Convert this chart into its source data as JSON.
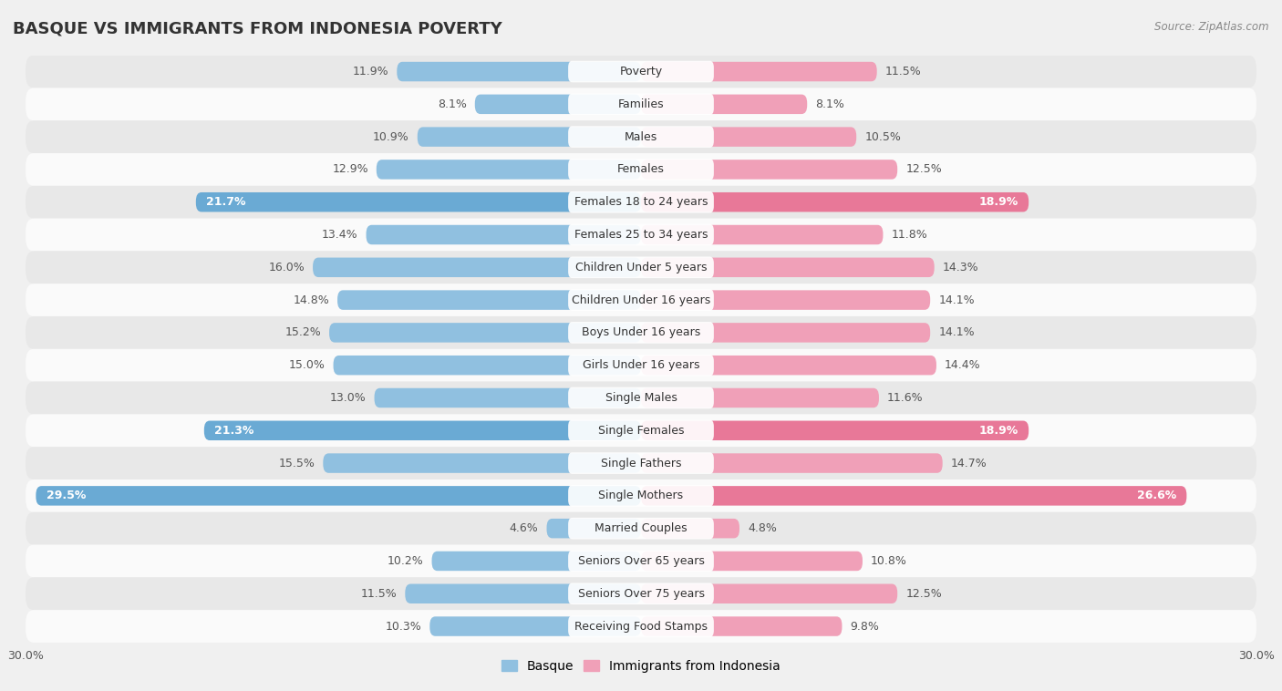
{
  "title": "BASQUE VS IMMIGRANTS FROM INDONESIA POVERTY",
  "source": "Source: ZipAtlas.com",
  "categories": [
    "Poverty",
    "Families",
    "Males",
    "Females",
    "Females 18 to 24 years",
    "Females 25 to 34 years",
    "Children Under 5 years",
    "Children Under 16 years",
    "Boys Under 16 years",
    "Girls Under 16 years",
    "Single Males",
    "Single Females",
    "Single Fathers",
    "Single Mothers",
    "Married Couples",
    "Seniors Over 65 years",
    "Seniors Over 75 years",
    "Receiving Food Stamps"
  ],
  "basque_values": [
    11.9,
    8.1,
    10.9,
    12.9,
    21.7,
    13.4,
    16.0,
    14.8,
    15.2,
    15.0,
    13.0,
    21.3,
    15.5,
    29.5,
    4.6,
    10.2,
    11.5,
    10.3
  ],
  "indonesia_values": [
    11.5,
    8.1,
    10.5,
    12.5,
    18.9,
    11.8,
    14.3,
    14.1,
    14.1,
    14.4,
    11.6,
    18.9,
    14.7,
    26.6,
    4.8,
    10.8,
    12.5,
    9.8
  ],
  "basque_color": "#90c0e0",
  "indonesia_color": "#f0a0b8",
  "basque_highlight_color": "#6aaad4",
  "indonesia_highlight_color": "#e87898",
  "highlight_rows": [
    4,
    11,
    13
  ],
  "axis_limit": 30.0,
  "background_color": "#f0f0f0",
  "row_bg_light": "#fafafa",
  "row_bg_dark": "#e8e8e8",
  "bar_height": 0.6,
  "label_color_normal": "#555555",
  "label_color_highlight": "#ffffff",
  "legend_labels": [
    "Basque",
    "Immigrants from Indonesia"
  ],
  "cat_label_fontsize": 9,
  "val_label_fontsize": 9,
  "title_fontsize": 13
}
